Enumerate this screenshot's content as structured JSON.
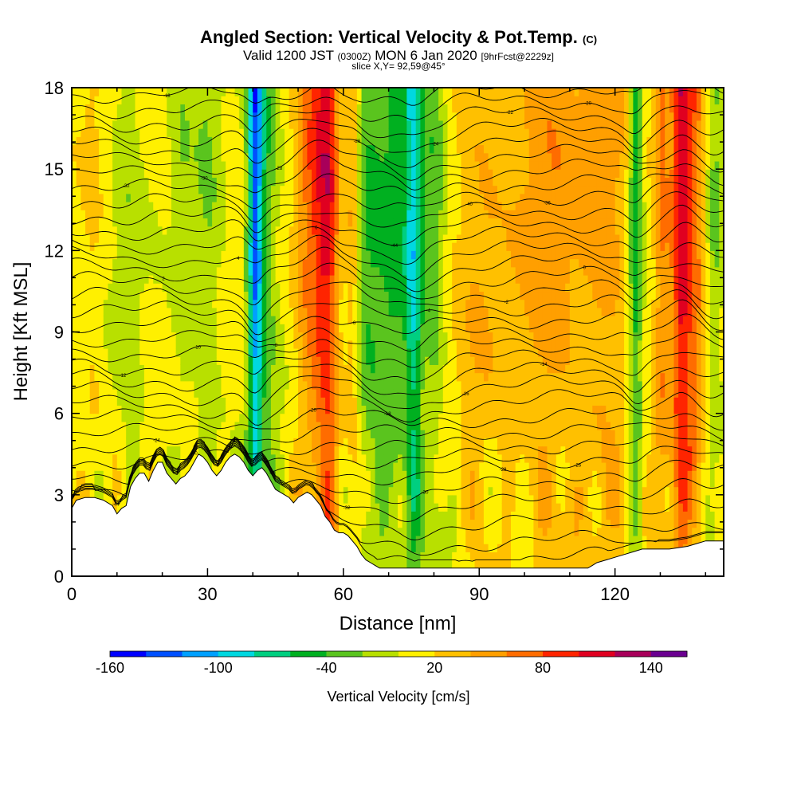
{
  "title": {
    "main": "Angled Section: Vertical Velocity & Pot.Temp.",
    "unit": "(C)"
  },
  "subtitle": {
    "valid": "Valid 1200 JST",
    "utc": "(0300Z)",
    "date": "MON 6 Jan 2020",
    "fcst": "[9hrFcst@2229z]"
  },
  "slice_label": "slice X,Y= 92,59@45°",
  "chart_data": {
    "type": "heatmap",
    "xlabel": "Distance [nm]",
    "ylabel": "Height [Kft MSL]",
    "x_ticks": [
      0,
      30,
      60,
      90,
      120
    ],
    "y_ticks": [
      0,
      3,
      6,
      9,
      12,
      15,
      18
    ],
    "xlim": [
      0,
      144
    ],
    "ylim": [
      0,
      18
    ],
    "colorbar": {
      "label": "Vertical Velocity [cm/s]",
      "tick_labels": [
        "-160",
        "-100",
        "-40",
        "20",
        "80",
        "140"
      ],
      "tick_values": [
        -160,
        -100,
        -40,
        20,
        80,
        140
      ],
      "range": [
        -160,
        160
      ],
      "colors": [
        "#0000ff",
        "#0050ff",
        "#00a0ff",
        "#00d8e0",
        "#00cf80",
        "#00b020",
        "#5ac41e",
        "#b8e000",
        "#fff000",
        "#ffc000",
        "#ff9f00",
        "#ff6c00",
        "#ff2400",
        "#e00020",
        "#a8005a",
        "#6a0090"
      ]
    },
    "velocity_columns": [
      {
        "x": 40.5,
        "w": 1.6,
        "v": -110
      },
      {
        "x": 42.5,
        "w": 3.0,
        "v": -45
      },
      {
        "x": 56.5,
        "w": 2.6,
        "v": 95
      },
      {
        "x": 52.5,
        "w": 3.0,
        "v": 55
      },
      {
        "x": 66.0,
        "w": 5.0,
        "v": -50
      },
      {
        "x": 75.5,
        "w": 2.0,
        "v": -95
      },
      {
        "x": 71.5,
        "w": 2.5,
        "v": -40
      },
      {
        "x": 62.0,
        "w": 1.8,
        "v": 50
      },
      {
        "x": 105.0,
        "w": 8.0,
        "v": 45
      },
      {
        "x": 118.0,
        "w": 6.0,
        "v": 40
      },
      {
        "x": 134.5,
        "w": 2.0,
        "v": 95
      },
      {
        "x": 137.5,
        "w": 2.5,
        "v": 60
      },
      {
        "x": 130.5,
        "w": 2.0,
        "v": 55
      },
      {
        "x": 30.0,
        "w": 3.0,
        "v": -25
      },
      {
        "x": 24.5,
        "w": 2.5,
        "v": -20
      },
      {
        "x": 12.5,
        "w": 3.5,
        "v": -20
      },
      {
        "x": 4.5,
        "w": 2.5,
        "v": 15
      },
      {
        "x": 90.0,
        "w": 6.0,
        "v": 30
      },
      {
        "x": 80.0,
        "w": 2.5,
        "v": -40
      },
      {
        "x": 124.5,
        "w": 1.5,
        "v": -70
      },
      {
        "x": 142.0,
        "w": 2.0,
        "v": -30
      }
    ],
    "isentrope_labels": [
      "-44",
      "-40",
      "-36",
      "-32",
      "-30",
      "-28",
      "-26",
      "-24",
      "-22",
      "-20",
      "-18",
      "-16",
      "-14",
      "-12",
      "-10",
      "-8",
      "-6",
      "-4",
      "-2",
      "0",
      "2",
      "4",
      "6"
    ],
    "isentrope_levels_kft": [
      0.6,
      1.2,
      1.9,
      2.6,
      3.2,
      3.8,
      4.3,
      4.8,
      5.3,
      5.8,
      6.3,
      6.8,
      7.3,
      7.8,
      8.3,
      8.8,
      9.3,
      9.8,
      10.3,
      10.8,
      11.3,
      11.8,
      12.3,
      12.8,
      13.3,
      13.8,
      14.3,
      14.8,
      15.3,
      15.8,
      16.3,
      16.8,
      17.3,
      17.8
    ],
    "terrain": [
      [
        0,
        2.5
      ],
      [
        1,
        2.8
      ],
      [
        3,
        2.9
      ],
      [
        5,
        2.9
      ],
      [
        7,
        2.8
      ],
      [
        9,
        2.6
      ],
      [
        10,
        2.3
      ],
      [
        11,
        2.5
      ],
      [
        12,
        2.6
      ],
      [
        13,
        3.3
      ],
      [
        14,
        3.6
      ],
      [
        15,
        3.8
      ],
      [
        16,
        3.8
      ],
      [
        17,
        3.5
      ],
      [
        18,
        3.9
      ],
      [
        19,
        4.2
      ],
      [
        20,
        4.2
      ],
      [
        21,
        3.8
      ],
      [
        22,
        3.6
      ],
      [
        23,
        3.4
      ],
      [
        24,
        3.6
      ],
      [
        25,
        3.7
      ],
      [
        26,
        3.9
      ],
      [
        27,
        4.2
      ],
      [
        28,
        4.5
      ],
      [
        29,
        4.4
      ],
      [
        30,
        4.2
      ],
      [
        31,
        3.9
      ],
      [
        32,
        3.7
      ],
      [
        33,
        3.9
      ],
      [
        34,
        4.2
      ],
      [
        35,
        4.4
      ],
      [
        36,
        4.5
      ],
      [
        37,
        4.4
      ],
      [
        38,
        4.2
      ],
      [
        39,
        3.9
      ],
      [
        40,
        3.7
      ],
      [
        41,
        3.9
      ],
      [
        42,
        4.0
      ],
      [
        43,
        3.8
      ],
      [
        44,
        3.5
      ],
      [
        45,
        3.2
      ],
      [
        46,
        3.1
      ],
      [
        47,
        3.0
      ],
      [
        48,
        2.9
      ],
      [
        49,
        2.7
      ],
      [
        50,
        2.9
      ],
      [
        51,
        3.0
      ],
      [
        52,
        3.1
      ],
      [
        53,
        3.0
      ],
      [
        54,
        2.8
      ],
      [
        55,
        2.6
      ],
      [
        56,
        2.2
      ],
      [
        57,
        2.0
      ],
      [
        58,
        1.7
      ],
      [
        59,
        1.6
      ],
      [
        60,
        1.6
      ],
      [
        61,
        1.5
      ],
      [
        62,
        1.3
      ],
      [
        63,
        1.1
      ],
      [
        64,
        0.8
      ],
      [
        65,
        0.6
      ],
      [
        66,
        0.5
      ],
      [
        67,
        0.4
      ],
      [
        68,
        0.3
      ],
      [
        70,
        0.3
      ],
      [
        75,
        0.3
      ],
      [
        80,
        0.3
      ],
      [
        85,
        0.3
      ],
      [
        90,
        0.3
      ],
      [
        95,
        0.3
      ],
      [
        100,
        0.3
      ],
      [
        105,
        0.3
      ],
      [
        110,
        0.3
      ],
      [
        114,
        0.3
      ],
      [
        115,
        0.4
      ],
      [
        116,
        0.5
      ],
      [
        118,
        0.6
      ],
      [
        120,
        0.7
      ],
      [
        122,
        0.8
      ],
      [
        124,
        0.9
      ],
      [
        126,
        1.0
      ],
      [
        128,
        1.0
      ],
      [
        132,
        1.0
      ],
      [
        136,
        1.1
      ],
      [
        138,
        1.2
      ],
      [
        140,
        1.3
      ],
      [
        144,
        1.3
      ]
    ]
  }
}
